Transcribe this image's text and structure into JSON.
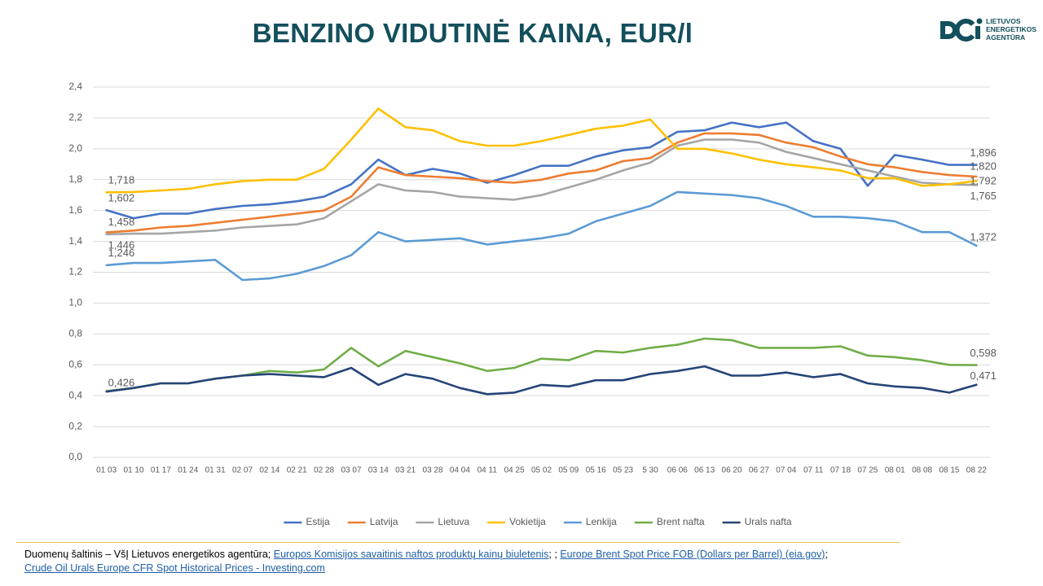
{
  "chart_data": {
    "type": "line",
    "title": "BENZINO VIDUTINĖ KAINA, EUR/l",
    "categories": [
      "01 03",
      "01 10",
      "01 17",
      "01 24",
      "01 31",
      "02 07",
      "02 14",
      "02 21",
      "02 28",
      "03 07",
      "03 14",
      "03 21",
      "03 28",
      "04 04",
      "04 11",
      "04 25",
      "05 02",
      "05 09",
      "05 16",
      "05 23",
      "5 30",
      "06 06",
      "06 13",
      "06 20",
      "06 27",
      "07 04",
      "07 11",
      "07 18",
      "07 25",
      "08 01",
      "08 08",
      "08 15",
      "08 22"
    ],
    "ylim": [
      0,
      2.4
    ],
    "yticks": [
      {
        "value": 0,
        "label": "0,0"
      },
      {
        "value": 0.2,
        "label": "0,2"
      },
      {
        "value": 0.4,
        "label": "0,4"
      },
      {
        "value": 0.6,
        "label": "0,6"
      },
      {
        "value": 0.8,
        "label": "0,8"
      },
      {
        "value": 1,
        "label": "1,0"
      },
      {
        "value": 1.2,
        "label": "1,2"
      },
      {
        "value": 1.4,
        "label": "1,4"
      },
      {
        "value": 1.6,
        "label": "1,6"
      },
      {
        "value": 1.8,
        "label": "1,8"
      },
      {
        "value": 2,
        "label": "2,0"
      },
      {
        "value": 2.2,
        "label": "2,2"
      },
      {
        "value": 2.4,
        "label": "2,4"
      }
    ],
    "grid": true,
    "legend": "bottom",
    "series": [
      {
        "name": "Estija",
        "color": "#4472c4",
        "values": [
          1.602,
          1.55,
          1.58,
          1.58,
          1.61,
          1.63,
          1.64,
          1.66,
          1.69,
          1.77,
          1.93,
          1.83,
          1.87,
          1.84,
          1.78,
          1.83,
          1.89,
          1.89,
          1.95,
          1.99,
          2.01,
          2.11,
          2.12,
          2.17,
          2.14,
          2.17,
          2.05,
          2.0,
          1.76,
          1.96,
          1.93,
          1.896,
          1.896
        ],
        "value_labels": [
          "1,602",
          null,
          null,
          null,
          null,
          null,
          null,
          null,
          null,
          null,
          null,
          null,
          null,
          null,
          null,
          null,
          null,
          null,
          null,
          null,
          null,
          null,
          null,
          null,
          null,
          null,
          null,
          null,
          null,
          null,
          null,
          null,
          "1,896"
        ]
      },
      {
        "name": "Latvija",
        "color": "#ed7d31",
        "values": [
          1.458,
          1.47,
          1.49,
          1.5,
          1.52,
          1.54,
          1.56,
          1.58,
          1.6,
          1.69,
          1.88,
          1.83,
          1.82,
          1.81,
          1.79,
          1.78,
          1.8,
          1.84,
          1.86,
          1.92,
          1.94,
          2.04,
          2.1,
          2.1,
          2.09,
          2.04,
          2.01,
          1.95,
          1.9,
          1.88,
          1.85,
          1.83,
          1.82
        ],
        "value_labels": [
          "1,458",
          null,
          null,
          null,
          null,
          null,
          null,
          null,
          null,
          null,
          null,
          null,
          null,
          null,
          null,
          null,
          null,
          null,
          null,
          null,
          null,
          null,
          null,
          null,
          null,
          null,
          null,
          null,
          null,
          null,
          null,
          null,
          "1,820"
        ]
      },
      {
        "name": "Lietuva",
        "color": "#a5a5a5",
        "values": [
          1.446,
          1.45,
          1.45,
          1.46,
          1.47,
          1.49,
          1.5,
          1.51,
          1.55,
          1.66,
          1.77,
          1.73,
          1.72,
          1.69,
          1.68,
          1.67,
          1.7,
          1.75,
          1.8,
          1.86,
          1.91,
          2.02,
          2.06,
          2.06,
          2.04,
          1.98,
          1.94,
          1.9,
          1.86,
          1.82,
          1.78,
          1.77,
          1.765
        ],
        "value_labels": [
          "1,446",
          null,
          null,
          null,
          null,
          null,
          null,
          null,
          null,
          null,
          null,
          null,
          null,
          null,
          null,
          null,
          null,
          null,
          null,
          null,
          null,
          null,
          null,
          null,
          null,
          null,
          null,
          null,
          null,
          null,
          null,
          null,
          "1,765"
        ]
      },
      {
        "name": "Vokietija",
        "color": "#ffc000",
        "values": [
          1.718,
          1.72,
          1.73,
          1.74,
          1.77,
          1.79,
          1.8,
          1.8,
          1.87,
          2.06,
          2.26,
          2.14,
          2.12,
          2.05,
          2.02,
          2.02,
          2.05,
          2.09,
          2.13,
          2.15,
          2.19,
          2.0,
          2.0,
          1.97,
          1.93,
          1.9,
          1.88,
          1.86,
          1.81,
          1.81,
          1.76,
          1.77,
          1.792
        ],
        "value_labels": [
          "1,718",
          null,
          null,
          null,
          null,
          null,
          null,
          null,
          null,
          null,
          null,
          null,
          null,
          null,
          null,
          null,
          null,
          null,
          null,
          null,
          null,
          null,
          null,
          null,
          null,
          null,
          null,
          null,
          null,
          null,
          null,
          null,
          "1,792"
        ]
      },
      {
        "name": "Lenkija",
        "color": "#5b9bd5",
        "values": [
          1.246,
          1.26,
          1.26,
          1.27,
          1.28,
          1.15,
          1.16,
          1.19,
          1.24,
          1.31,
          1.46,
          1.4,
          1.41,
          1.42,
          1.38,
          1.4,
          1.42,
          1.45,
          1.53,
          1.58,
          1.63,
          1.72,
          1.71,
          1.7,
          1.68,
          1.63,
          1.56,
          1.56,
          1.55,
          1.53,
          1.46,
          1.46,
          1.372
        ],
        "value_labels": [
          "1,246",
          null,
          null,
          null,
          null,
          null,
          null,
          null,
          null,
          null,
          null,
          null,
          null,
          null,
          null,
          null,
          null,
          null,
          null,
          null,
          null,
          null,
          null,
          null,
          null,
          null,
          null,
          null,
          null,
          null,
          null,
          null,
          "1,372"
        ]
      },
      {
        "name": "Brent nafta",
        "color": "#70ad47",
        "values": [
          0.43,
          0.45,
          0.48,
          0.48,
          0.51,
          0.53,
          0.56,
          0.55,
          0.57,
          0.71,
          0.59,
          0.69,
          0.65,
          0.61,
          0.56,
          0.58,
          0.64,
          0.63,
          0.69,
          0.68,
          0.71,
          0.73,
          0.77,
          0.76,
          0.71,
          0.71,
          0.71,
          0.72,
          0.66,
          0.65,
          0.63,
          0.6,
          0.598
        ],
        "value_labels": [
          null,
          null,
          null,
          null,
          null,
          null,
          null,
          null,
          null,
          null,
          null,
          null,
          null,
          null,
          null,
          null,
          null,
          null,
          null,
          null,
          null,
          null,
          null,
          null,
          null,
          null,
          null,
          null,
          null,
          null,
          null,
          null,
          "0,598"
        ]
      },
      {
        "name": "Urals nafta",
        "color": "#264478",
        "values": [
          0.426,
          0.45,
          0.48,
          0.48,
          0.51,
          0.53,
          0.54,
          0.53,
          0.52,
          0.58,
          0.47,
          0.54,
          0.51,
          0.45,
          0.41,
          0.42,
          0.47,
          0.46,
          0.5,
          0.5,
          0.54,
          0.56,
          0.59,
          0.53,
          0.53,
          0.55,
          0.52,
          0.54,
          0.48,
          0.46,
          0.45,
          0.42,
          0.471
        ],
        "value_labels": [
          "0,426",
          null,
          null,
          null,
          null,
          null,
          null,
          null,
          null,
          null,
          null,
          null,
          null,
          null,
          null,
          null,
          null,
          null,
          null,
          null,
          null,
          null,
          null,
          null,
          null,
          null,
          null,
          null,
          null,
          null,
          null,
          null,
          "0,471"
        ]
      }
    ]
  },
  "logo_text": [
    "LIETUVOS",
    "ENERGETIKOS",
    "AGENTŪRA"
  ],
  "source": [
    {
      "text": "Duomenų šaltinis – VšĮ Lietuvos energetikos agentūra; ",
      "link": false
    },
    {
      "text": "Europos Komisijos savaitinis naftos produktų kainų biuletenis",
      "link": true
    },
    {
      "text": "; ; ",
      "link": false
    },
    {
      "text": "Europe Brent Spot Price FOB (Dollars per Barrel) (eia.gov)",
      "link": true
    },
    {
      "text": "; ",
      "link": false
    },
    {
      "text": "Crude Oil Urals Europe CFR Spot Historical Prices - Investing.com",
      "link": true
    }
  ]
}
